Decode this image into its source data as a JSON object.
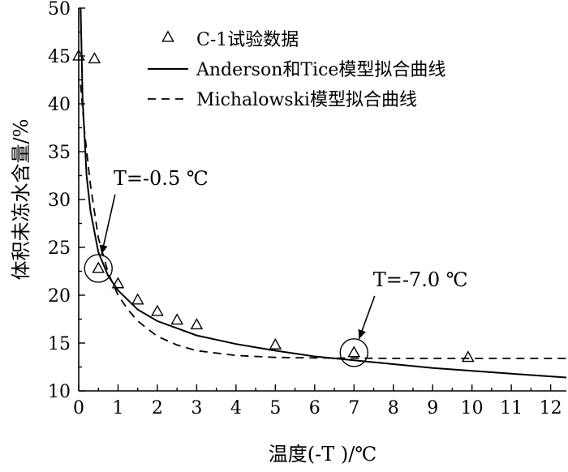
{
  "chart_data": {
    "type": "scatter",
    "ylabel": "体积未冻水含量/%",
    "xlabel": "温度(-T )/℃",
    "xlim": [
      0,
      12.4
    ],
    "ylim": [
      10,
      50
    ],
    "xticks": [
      0,
      1,
      2,
      3,
      4,
      5,
      6,
      7,
      8,
      9,
      10,
      11,
      12
    ],
    "yticks": [
      10,
      15,
      20,
      25,
      30,
      35,
      40,
      45,
      50
    ],
    "legend_position": "top-right",
    "series": [
      {
        "name": "C-1试验数据",
        "kind": "scatter",
        "marker": "triangle",
        "x": [
          0.0,
          0.4,
          0.5,
          1.0,
          1.5,
          2.0,
          2.5,
          3.0,
          5.0,
          7.0,
          9.9
        ],
        "y": [
          45.0,
          44.7,
          22.8,
          21.2,
          19.5,
          18.3,
          17.4,
          16.9,
          14.8,
          14.0,
          13.5
        ]
      },
      {
        "name": "Anderson和Tice模型拟合曲线",
        "kind": "line",
        "style": "solid",
        "x": [
          0.05,
          0.1,
          0.2,
          0.3,
          0.5,
          0.75,
          1.0,
          1.5,
          2.0,
          3.0,
          4.0,
          5.0,
          6.0,
          7.0,
          8.0,
          9.0,
          10.0,
          11.0,
          12.4
        ],
        "y": [
          50.0,
          40.5,
          32.5,
          28.8,
          24.5,
          22.0,
          20.5,
          18.5,
          17.3,
          15.8,
          14.9,
          14.2,
          13.6,
          13.2,
          12.8,
          12.4,
          12.1,
          11.8,
          11.4
        ]
      },
      {
        "name": "Michalowski模型拟合曲线",
        "kind": "line",
        "style": "dashed",
        "x": [
          0.05,
          0.15,
          0.3,
          0.5,
          0.75,
          1.0,
          1.25,
          1.5,
          2.0,
          2.5,
          3.0,
          4.0,
          5.0,
          6.0,
          7.0,
          8.0,
          10.0,
          12.4
        ],
        "y": [
          42.0,
          37.0,
          31.5,
          26.0,
          22.3,
          20.0,
          18.5,
          17.3,
          15.7,
          14.8,
          14.2,
          13.7,
          13.5,
          13.45,
          13.42,
          13.4,
          13.4,
          13.4
        ]
      }
    ],
    "annotations": [
      {
        "label": "T=-0.5 ℃",
        "point": {
          "x": 0.5,
          "y": 22.8
        },
        "label_pos": {
          "x": 1.75,
          "y": 31.2
        }
      },
      {
        "label": "T=-7.0 ℃",
        "point": {
          "x": 7.0,
          "y": 14.0
        },
        "label_pos": {
          "x": 8.35,
          "y": 20.6
        }
      }
    ]
  }
}
